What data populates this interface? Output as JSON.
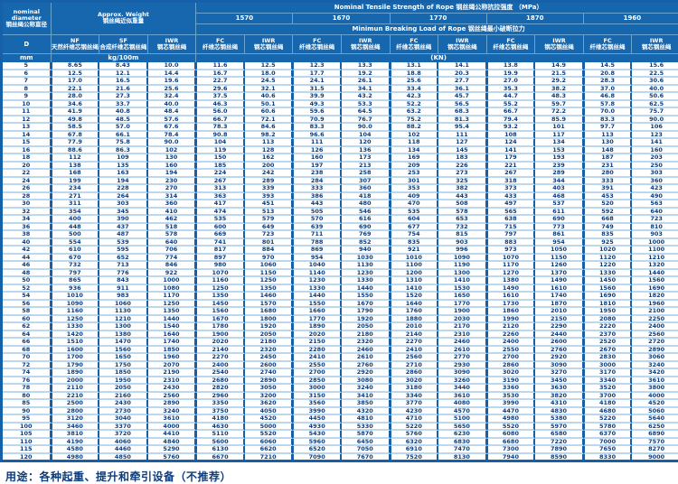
{
  "colors": {
    "table_blue": "#1560a8",
    "header_blue": "#1767af",
    "stripe_blue": "#bcd8ef",
    "text_navy": "#0d3c7d"
  },
  "header": {
    "nominal_diameter_en": "nominal diameter",
    "nominal_diameter_zh": "钢丝绳公称直径",
    "approx_weight_en": "Approx. Weight",
    "approx_weight_zh": "钢丝绳近似重量",
    "tensile_title": "Nominal Tensile Strength of Rope  钢丝绳公称抗拉强度 （MPa）",
    "breaking_title": "Minimun Breaking Load of Rope  钢丝绳最小破断拉力"
  },
  "table": {
    "grades": [
      "1570",
      "1670",
      "1770",
      "1870",
      "1960"
    ],
    "col_d": "D",
    "col_nf": {
      "abbr": "NF",
      "zh": "天然纤维芯钢丝绳"
    },
    "col_sf": {
      "abbr": "SF",
      "zh": "合成纤维芯钢丝绳"
    },
    "col_iwr_weight": {
      "abbr": "IWR",
      "zh": "钢芯钢丝绳"
    },
    "col_fc": {
      "abbr": "FC",
      "zh": "纤维芯钢丝绳"
    },
    "col_iwr": {
      "abbr": "IWR",
      "zh": "钢芯钢丝绳"
    },
    "units": {
      "d": "mm",
      "weight": "kg/100m",
      "load": "(KN)"
    },
    "rows": [
      [
        "5",
        "8.65",
        "8.43",
        "10.0",
        "11.6",
        "12.5",
        "12.3",
        "13.3",
        "13.1",
        "14.1",
        "13.8",
        "14.9",
        "14.5",
        "15.6"
      ],
      [
        "6",
        "12.5",
        "12.1",
        "14.4",
        "16.7",
        "18.0",
        "17.7",
        "19.2",
        "18.8",
        "20.3",
        "19.9",
        "21.5",
        "20.8",
        "22.5"
      ],
      [
        "7",
        "17.0",
        "16.5",
        "19.6",
        "22.7",
        "24.5",
        "24.1",
        "26.1",
        "25.6",
        "27.7",
        "27.0",
        "29.2",
        "28.3",
        "30.6"
      ],
      [
        "8",
        "22.1",
        "21.6",
        "25.6",
        "29.6",
        "32.1",
        "31.5",
        "34.1",
        "33.4",
        "36.1",
        "35.3",
        "38.2",
        "37.0",
        "40.0"
      ],
      [
        "9",
        "28.0",
        "27.3",
        "32.4",
        "37.5",
        "40.6",
        "39.9",
        "43.2",
        "42.3",
        "45.7",
        "44.7",
        "48.3",
        "46.8",
        "50.6"
      ],
      [
        "10",
        "34.6",
        "33.7",
        "40.0",
        "46.3",
        "50.1",
        "49.3",
        "53.3",
        "52.2",
        "56.5",
        "55.2",
        "59.7",
        "57.8",
        "62.5"
      ],
      [
        "11",
        "41.9",
        "40.8",
        "48.4",
        "56.0",
        "60.6",
        "59.6",
        "64.5",
        "63.2",
        "68.3",
        "66.7",
        "72.2",
        "70.0",
        "75.7"
      ],
      [
        "12",
        "49.8",
        "48.5",
        "57.6",
        "66.7",
        "72.1",
        "70.9",
        "76.7",
        "75.2",
        "81.3",
        "79.4",
        "85.9",
        "83.3",
        "90.0"
      ],
      [
        "13",
        "58.5",
        "57.0",
        "67.6",
        "78.3",
        "84.6",
        "83.3",
        "90.0",
        "88.2",
        "95.4",
        "93.2",
        "101",
        "97.7",
        "106"
      ],
      [
        "14",
        "67.8",
        "66.1",
        "78.4",
        "90.8",
        "98.2",
        "96.6",
        "104",
        "102",
        "111",
        "108",
        "117",
        "113",
        "123"
      ],
      [
        "15",
        "77.9",
        "75.8",
        "90.0",
        "104",
        "113",
        "111",
        "120",
        "118",
        "127",
        "124",
        "134",
        "130",
        "141"
      ],
      [
        "16",
        "88.6",
        "86.3",
        "102",
        "119",
        "128",
        "126",
        "136",
        "134",
        "145",
        "141",
        "153",
        "148",
        "160"
      ],
      [
        "18",
        "112",
        "109",
        "130",
        "150",
        "162",
        "160",
        "173",
        "169",
        "183",
        "179",
        "193",
        "187",
        "203"
      ],
      [
        "20",
        "138",
        "135",
        "160",
        "185",
        "200",
        "197",
        "213",
        "209",
        "226",
        "221",
        "239",
        "231",
        "250"
      ],
      [
        "22",
        "168",
        "163",
        "194",
        "224",
        "242",
        "238",
        "258",
        "253",
        "273",
        "267",
        "289",
        "280",
        "303"
      ],
      [
        "24",
        "199",
        "194",
        "230",
        "267",
        "289",
        "284",
        "307",
        "301",
        "325",
        "318",
        "344",
        "333",
        "360"
      ],
      [
        "26",
        "234",
        "228",
        "270",
        "313",
        "339",
        "333",
        "360",
        "353",
        "382",
        "373",
        "403",
        "391",
        "423"
      ],
      [
        "28",
        "271",
        "264",
        "314",
        "363",
        "393",
        "386",
        "418",
        "409",
        "443",
        "433",
        "468",
        "453",
        "490"
      ],
      [
        "30",
        "311",
        "303",
        "360",
        "417",
        "451",
        "443",
        "480",
        "470",
        "508",
        "497",
        "537",
        "520",
        "563"
      ],
      [
        "32",
        "354",
        "345",
        "410",
        "474",
        "513",
        "505",
        "546",
        "535",
        "578",
        "565",
        "611",
        "592",
        "640"
      ],
      [
        "34",
        "400",
        "390",
        "462",
        "535",
        "579",
        "570",
        "616",
        "604",
        "653",
        "638",
        "690",
        "668",
        "723"
      ],
      [
        "36",
        "448",
        "437",
        "518",
        "600",
        "649",
        "639",
        "690",
        "677",
        "732",
        "715",
        "773",
        "749",
        "810"
      ],
      [
        "38",
        "500",
        "487",
        "578",
        "669",
        "723",
        "711",
        "769",
        "754",
        "815",
        "797",
        "861",
        "835",
        "903"
      ],
      [
        "40",
        "554",
        "539",
        "640",
        "741",
        "801",
        "788",
        "852",
        "835",
        "903",
        "883",
        "954",
        "925",
        "1000"
      ],
      [
        "42",
        "610",
        "595",
        "706",
        "817",
        "884",
        "869",
        "940",
        "921",
        "996",
        "973",
        "1050",
        "1020",
        "1100"
      ],
      [
        "44",
        "670",
        "652",
        "774",
        "897",
        "970",
        "954",
        "1030",
        "1010",
        "1090",
        "1070",
        "1150",
        "1120",
        "1210"
      ],
      [
        "46",
        "732",
        "713",
        "846",
        "980",
        "1060",
        "1040",
        "1130",
        "1100",
        "1190",
        "1170",
        "1260",
        "1220",
        "1320"
      ],
      [
        "48",
        "797",
        "776",
        "922",
        "1070",
        "1150",
        "1140",
        "1230",
        "1200",
        "1300",
        "1270",
        "1370",
        "1330",
        "1440"
      ],
      [
        "50",
        "865",
        "843",
        "1000",
        "1160",
        "1250",
        "1230",
        "1330",
        "1310",
        "1410",
        "1380",
        "1490",
        "1450",
        "1560"
      ],
      [
        "52",
        "936",
        "911",
        "1080",
        "1250",
        "1350",
        "1330",
        "1440",
        "1410",
        "1530",
        "1490",
        "1610",
        "1560",
        "1690"
      ],
      [
        "54",
        "1010",
        "983",
        "1170",
        "1350",
        "1460",
        "1440",
        "1550",
        "1520",
        "1650",
        "1610",
        "1740",
        "1690",
        "1820"
      ],
      [
        "56",
        "1090",
        "1060",
        "1250",
        "1450",
        "1570",
        "1550",
        "1670",
        "1640",
        "1770",
        "1730",
        "1870",
        "1810",
        "1960"
      ],
      [
        "58",
        "1160",
        "1130",
        "1350",
        "1560",
        "1680",
        "1660",
        "1790",
        "1760",
        "1900",
        "1860",
        "2010",
        "1950",
        "2100"
      ],
      [
        "60",
        "1250",
        "1210",
        "1440",
        "1670",
        "1800",
        "1770",
        "1920",
        "1880",
        "2030",
        "1990",
        "2150",
        "2080",
        "2250"
      ],
      [
        "62",
        "1330",
        "1300",
        "1540",
        "1780",
        "1920",
        "1890",
        "2050",
        "2010",
        "2170",
        "2120",
        "2290",
        "2220",
        "2400"
      ],
      [
        "64",
        "1420",
        "1380",
        "1640",
        "1900",
        "2050",
        "2020",
        "2180",
        "2140",
        "2310",
        "2260",
        "2440",
        "2370",
        "2560"
      ],
      [
        "66",
        "1510",
        "1470",
        "1740",
        "2020",
        "2180",
        "2150",
        "2320",
        "2270",
        "2460",
        "2400",
        "2600",
        "2520",
        "2720"
      ],
      [
        "68",
        "1600",
        "1560",
        "1850",
        "2140",
        "2320",
        "2280",
        "2460",
        "2410",
        "2610",
        "2550",
        "2760",
        "2670",
        "2890"
      ],
      [
        "70",
        "1700",
        "1650",
        "1960",
        "2270",
        "2450",
        "2410",
        "2610",
        "2560",
        "2770",
        "2700",
        "2920",
        "2830",
        "3060"
      ],
      [
        "72",
        "1790",
        "1750",
        "2070",
        "2400",
        "2600",
        "2550",
        "2760",
        "2710",
        "2930",
        "2860",
        "3090",
        "3000",
        "3240"
      ],
      [
        "74",
        "1890",
        "1850",
        "2190",
        "2540",
        "2740",
        "2700",
        "2920",
        "2860",
        "3090",
        "3020",
        "3270",
        "3170",
        "3420"
      ],
      [
        "76",
        "2000",
        "1950",
        "2310",
        "2680",
        "2890",
        "2850",
        "3080",
        "3020",
        "3260",
        "3190",
        "3450",
        "3340",
        "3610"
      ],
      [
        "78",
        "2110",
        "2050",
        "2430",
        "2820",
        "3050",
        "3000",
        "3240",
        "3180",
        "3440",
        "3360",
        "3630",
        "3520",
        "3800"
      ],
      [
        "80",
        "2210",
        "2160",
        "2560",
        "2960",
        "3200",
        "3150",
        "3410",
        "3340",
        "3610",
        "3530",
        "3820",
        "3700",
        "4000"
      ],
      [
        "85",
        "2500",
        "2430",
        "2890",
        "3350",
        "3620",
        "3560",
        "3850",
        "3770",
        "4080",
        "3990",
        "4310",
        "4180",
        "4520"
      ],
      [
        "90",
        "2800",
        "2730",
        "3240",
        "3750",
        "4050",
        "3990",
        "4320",
        "4230",
        "4570",
        "4470",
        "4830",
        "4680",
        "5060"
      ],
      [
        "95",
        "3120",
        "3040",
        "3610",
        "4180",
        "4520",
        "4450",
        "4810",
        "4710",
        "5100",
        "4980",
        "5380",
        "5220",
        "5640"
      ],
      [
        "100",
        "3460",
        "3370",
        "4000",
        "4630",
        "5000",
        "4930",
        "5330",
        "5220",
        "5650",
        "5520",
        "5970",
        "5780",
        "6250"
      ],
      [
        "105",
        "3810",
        "3720",
        "4410",
        "5110",
        "5520",
        "5430",
        "5870",
        "5760",
        "6230",
        "6080",
        "6580",
        "6370",
        "6890"
      ],
      [
        "110",
        "4190",
        "4060",
        "4840",
        "5600",
        "6060",
        "5960",
        "6450",
        "6320",
        "6830",
        "6680",
        "7220",
        "7000",
        "7570"
      ],
      [
        "115",
        "4580",
        "4460",
        "5290",
        "6130",
        "6620",
        "6520",
        "7050",
        "6910",
        "7470",
        "7300",
        "7890",
        "7650",
        "8270"
      ],
      [
        "120",
        "4980",
        "4850",
        "5760",
        "6670",
        "7210",
        "7090",
        "7670",
        "7520",
        "8130",
        "7940",
        "8590",
        "8330",
        "9000"
      ]
    ]
  },
  "footer_note": "用途：各种起重、提升和牵引设备（不推荐）"
}
